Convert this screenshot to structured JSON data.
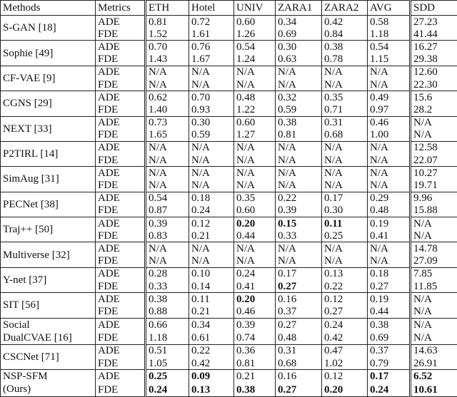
{
  "table": {
    "headers": [
      "Methods",
      "Metrics",
      "ETH",
      "Hotel",
      "UNIV",
      "ZARA1",
      "ZARA2",
      "AVG",
      "SDD"
    ],
    "metric_labels": [
      "ADE",
      "FDE"
    ],
    "rows": [
      {
        "method": [
          "S-GAN [18]"
        ],
        "ade": [
          "0.81",
          "0.72",
          "0.60",
          "0.34",
          "0.42",
          "0.58",
          "27.23"
        ],
        "fde": [
          "1.52",
          "1.61",
          "1.26",
          "0.69",
          "0.84",
          "1.18",
          "41.44"
        ],
        "bold_ade": [],
        "bold_fde": []
      },
      {
        "method": [
          "Sophie [49]"
        ],
        "ade": [
          "0.70",
          "0.76",
          "0.54",
          "0.30",
          "0.38",
          "0.54",
          "16.27"
        ],
        "fde": [
          "1.43",
          "1.67",
          "1.24",
          "0.63",
          "0.78",
          "1.15",
          "29.38"
        ],
        "bold_ade": [],
        "bold_fde": []
      },
      {
        "method": [
          "CF-VAE [9]"
        ],
        "ade": [
          "N/A",
          "N/A",
          "N/A",
          "N/A",
          "N/A",
          "N/A",
          "12.60"
        ],
        "fde": [
          "N/A",
          "N/A",
          "N/A",
          "N/A",
          "N/A",
          "N/A",
          "22.30"
        ],
        "bold_ade": [],
        "bold_fde": []
      },
      {
        "method": [
          "CGNS [29]"
        ],
        "ade": [
          "0.62",
          "0.70",
          "0.48",
          "0.32",
          "0.35",
          "0.49",
          "15.6"
        ],
        "fde": [
          "1.40",
          "0.93",
          "1.22",
          "0.59",
          "0.71",
          "0.97",
          "28.2"
        ],
        "bold_ade": [],
        "bold_fde": []
      },
      {
        "method": [
          "NEXT [33]"
        ],
        "ade": [
          "0.73",
          "0.30",
          "0.60",
          "0.38",
          "0.31",
          "0.46",
          "N/A"
        ],
        "fde": [
          "1.65",
          "0.59",
          "1.27",
          "0.81",
          "0.68",
          "1.00",
          "N/A"
        ],
        "bold_ade": [],
        "bold_fde": []
      },
      {
        "method": [
          "P2TIRL [14]"
        ],
        "ade": [
          "N/A",
          "N/A",
          "N/A",
          "N/A",
          "N/A",
          "N/A",
          "12.58"
        ],
        "fde": [
          "N/A",
          "N/A",
          "N/A",
          "N/A",
          "N/A",
          "N/A",
          "22.07"
        ],
        "bold_ade": [],
        "bold_fde": []
      },
      {
        "method": [
          "SimAug [31]"
        ],
        "ade": [
          "N/A",
          "N/A",
          "N/A",
          "N/A",
          "N/A",
          "N/A",
          "10.27"
        ],
        "fde": [
          "N/A",
          "N/A",
          "N/A",
          "N/A",
          "N/A",
          "N/A",
          "19.71"
        ],
        "bold_ade": [],
        "bold_fde": []
      },
      {
        "method": [
          "PECNet [38]"
        ],
        "ade": [
          "0.54",
          "0.18",
          "0.35",
          "0.22",
          "0.17",
          "0.29",
          "9.96"
        ],
        "fde": [
          "0.87",
          "0.24",
          "0.60",
          "0.39",
          "0.30",
          "0.48",
          "15.88"
        ],
        "bold_ade": [],
        "bold_fde": []
      },
      {
        "method": [
          "Traj++ [50]"
        ],
        "ade": [
          "0.39",
          "0.12",
          "0.20",
          "0.15",
          "0.11",
          "0.19",
          "N/A"
        ],
        "fde": [
          "0.83",
          "0.21",
          "0.44",
          "0.33",
          "0.25",
          "0.41",
          "N/A"
        ],
        "bold_ade": [
          2,
          3,
          4
        ],
        "bold_fde": []
      },
      {
        "method": [
          "Multiverse [32]"
        ],
        "ade": [
          "N/A",
          "N/A",
          "N/A",
          "N/A",
          "N/A",
          "N/A",
          "14.78"
        ],
        "fde": [
          "N/A",
          "N/A",
          "N/A",
          "N/A",
          "N/A",
          "N/A",
          "27.09"
        ],
        "bold_ade": [],
        "bold_fde": []
      },
      {
        "method": [
          "Y-net [37]"
        ],
        "ade": [
          "0.28",
          "0.10",
          "0.24",
          "0.17",
          "0.13",
          "0.18",
          "7.85"
        ],
        "fde": [
          "0.33",
          "0.14",
          "0.41",
          "0.27",
          "0.22",
          "0.27",
          "11.85"
        ],
        "bold_ade": [],
        "bold_fde": [
          3
        ]
      },
      {
        "method": [
          "SIT [56]"
        ],
        "ade": [
          "0.38",
          "0.11",
          "0.20",
          "0.16",
          "0.12",
          "0.19",
          "N/A"
        ],
        "fde": [
          "0.88",
          "0.21",
          "0.46",
          "0.37",
          "0.27",
          "0.44",
          "N/A"
        ],
        "bold_ade": [
          2
        ],
        "bold_fde": []
      },
      {
        "method": [
          "Social",
          "DualCVAE [16]"
        ],
        "ade": [
          "0.66",
          "0.34",
          "0.39",
          "0.27",
          "0.24",
          "0.38",
          "N/A"
        ],
        "fde": [
          "1.18",
          "0.61",
          "0.74",
          "0.48",
          "0.42",
          "0.69",
          "N/A"
        ],
        "bold_ade": [],
        "bold_fde": []
      },
      {
        "method": [
          "CSCNet [71]"
        ],
        "ade": [
          "0.51",
          "0.22",
          "0.36",
          "0.31",
          "0.47",
          "0.37",
          "14.63"
        ],
        "fde": [
          "1.05",
          "0.42",
          "0.81",
          "0.68",
          "1.02",
          "0.79",
          "26.91"
        ],
        "bold_ade": [],
        "bold_fde": []
      },
      {
        "method": [
          "NSP-SFM",
          "(Ours)"
        ],
        "ade": [
          "0.25",
          "0.09",
          "0.21",
          "0.16",
          "0.12",
          "0.17",
          "6.52"
        ],
        "fde": [
          "0.24",
          "0.13",
          "0.38",
          "0.27",
          "0.20",
          "0.24",
          "10.61"
        ],
        "bold_ade": [
          0,
          1,
          5,
          6
        ],
        "bold_fde": [
          0,
          1,
          2,
          3,
          4,
          5,
          6
        ]
      }
    ]
  }
}
